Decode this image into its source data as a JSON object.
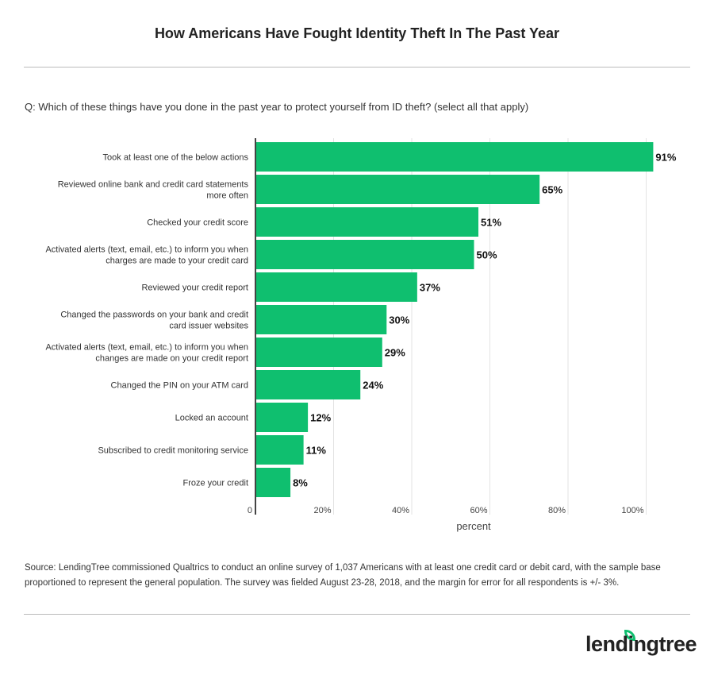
{
  "title": "How Americans Have Fought Identity Theft In The Past Year",
  "question": "Q: Which of these things have you done in the past year to protect yourself from ID theft? (select all that apply)",
  "source": "Source: LendingTree commissioned Qualtrics to conduct an online survey of 1,037 Americans with at least one credit card or debit card, with the sample base proportioned to represent the general population. The survey was fielded August 23-28, 2018, and the margin for error for all respondents is +/- 3%.",
  "logo": "lendingtree",
  "chart_data": {
    "type": "bar",
    "orientation": "horizontal",
    "categories": [
      "Took at least one of the below actions",
      "Reviewed online bank and credit card statements more often",
      "Checked your credit score",
      "Activated alerts (text, email, etc.) to inform you when charges are made to your credit card",
      "Reviewed your credit report",
      "Changed the passwords on your bank and credit card issuer websites",
      "Activated alerts (text, email, etc.) to inform you when changes are made on your credit report",
      "Changed the PIN on your ATM card",
      "Locked an account",
      "Subscribed to credit monitoring service",
      "Froze your credit"
    ],
    "category_lines": [
      [
        "Took at least one of the below actions"
      ],
      [
        "Reviewed online bank and credit card statements",
        "more often"
      ],
      [
        "Checked your credit score"
      ],
      [
        "Activated alerts (text, email, etc.) to inform you when",
        "charges are made to your credit card"
      ],
      [
        "Reviewed your credit report"
      ],
      [
        "Changed the passwords on your bank and credit",
        "card issuer websites"
      ],
      [
        "Activated alerts (text, email, etc.) to inform you when",
        "changes are made on your credit report"
      ],
      [
        "Changed the PIN on your ATM card"
      ],
      [
        "Locked an account"
      ],
      [
        "Subscribed to credit monitoring service"
      ],
      [
        "Froze your credit"
      ]
    ],
    "values": [
      91,
      65,
      51,
      50,
      37,
      30,
      29,
      24,
      12,
      11,
      8
    ],
    "data_labels": [
      "91%",
      "65%",
      "51%",
      "50%",
      "37%",
      "30%",
      "29%",
      "24%",
      "12%",
      "11%",
      "8%"
    ],
    "xlabel": "percent",
    "xlim": [
      0,
      100
    ],
    "tick_labels": [
      "0",
      "20%",
      "40%",
      "60%",
      "80%",
      "100%"
    ],
    "grid": true,
    "bar_color": "#0fbf6f"
  }
}
